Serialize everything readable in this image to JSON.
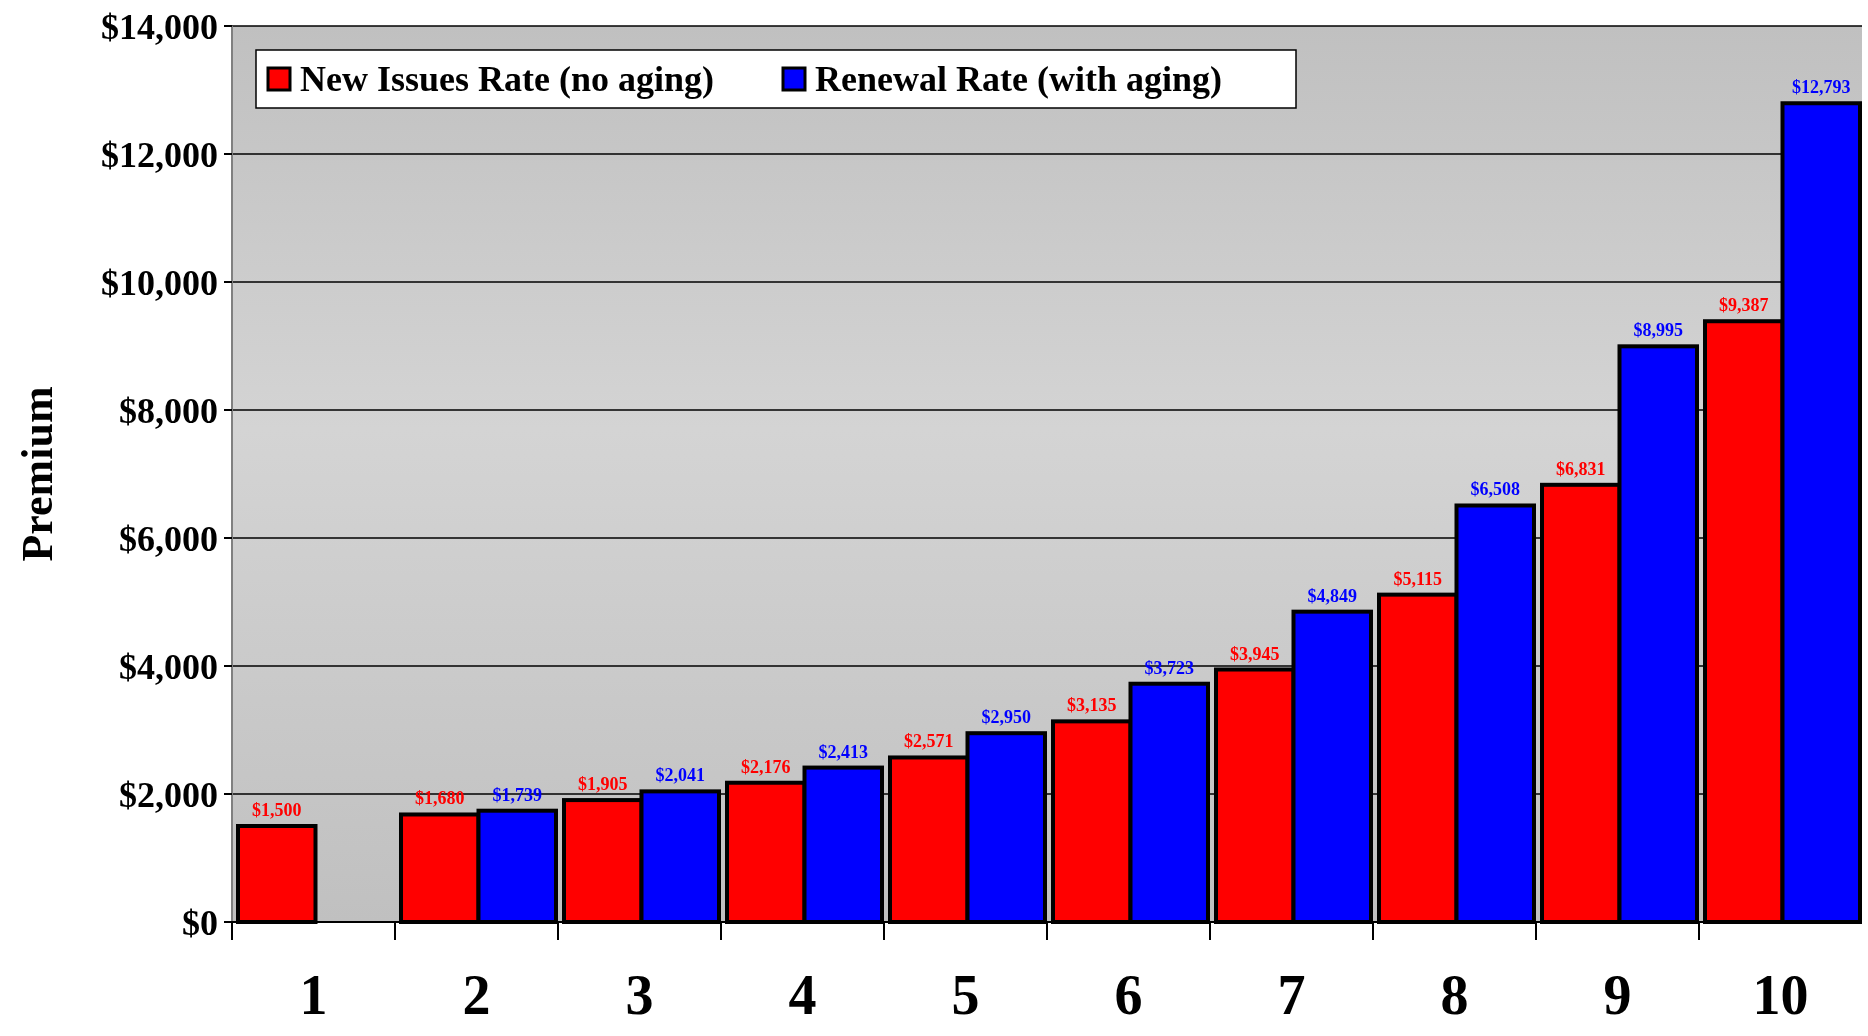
{
  "chart_data": {
    "type": "bar",
    "ylabel": "Premium",
    "categories": [
      "1",
      "2",
      "3",
      "4",
      "5",
      "6",
      "7",
      "8",
      "9",
      "10"
    ],
    "series": [
      {
        "name": "New Issues Rate (no aging)",
        "color": "#ff0000",
        "values": [
          1500,
          1680,
          1905,
          2176,
          2571,
          3135,
          3945,
          5115,
          6831,
          9387
        ],
        "value_labels": [
          "$1,500",
          "$1,680",
          "$1,905",
          "$2,176",
          "$2,571",
          "$3,135",
          "$3,945",
          "$5,115",
          "$6,831",
          "$9,387"
        ]
      },
      {
        "name": "Renewal Rate (with aging)",
        "color": "#0000ff",
        "values": [
          null,
          1739,
          2041,
          2413,
          2950,
          3723,
          4849,
          6508,
          8995,
          12793
        ],
        "value_labels": [
          null,
          "$1,739",
          "$2,041",
          "$2,413",
          "$2,950",
          "$3,723",
          "$4,849",
          "$6,508",
          "$8,995",
          "$12,793"
        ]
      }
    ],
    "ylim": [
      0,
      14000
    ],
    "yticks": [
      {
        "value": 0,
        "label": "$0"
      },
      {
        "value": 2000,
        "label": "$2,000"
      },
      {
        "value": 4000,
        "label": "$4,000"
      },
      {
        "value": 6000,
        "label": "$6,000"
      },
      {
        "value": 8000,
        "label": "$8,000"
      },
      {
        "value": 10000,
        "label": "$10,000"
      },
      {
        "value": 12000,
        "label": "$12,000"
      },
      {
        "value": 14000,
        "label": "$14,000"
      }
    ],
    "grid": "y",
    "legend": "top left"
  }
}
